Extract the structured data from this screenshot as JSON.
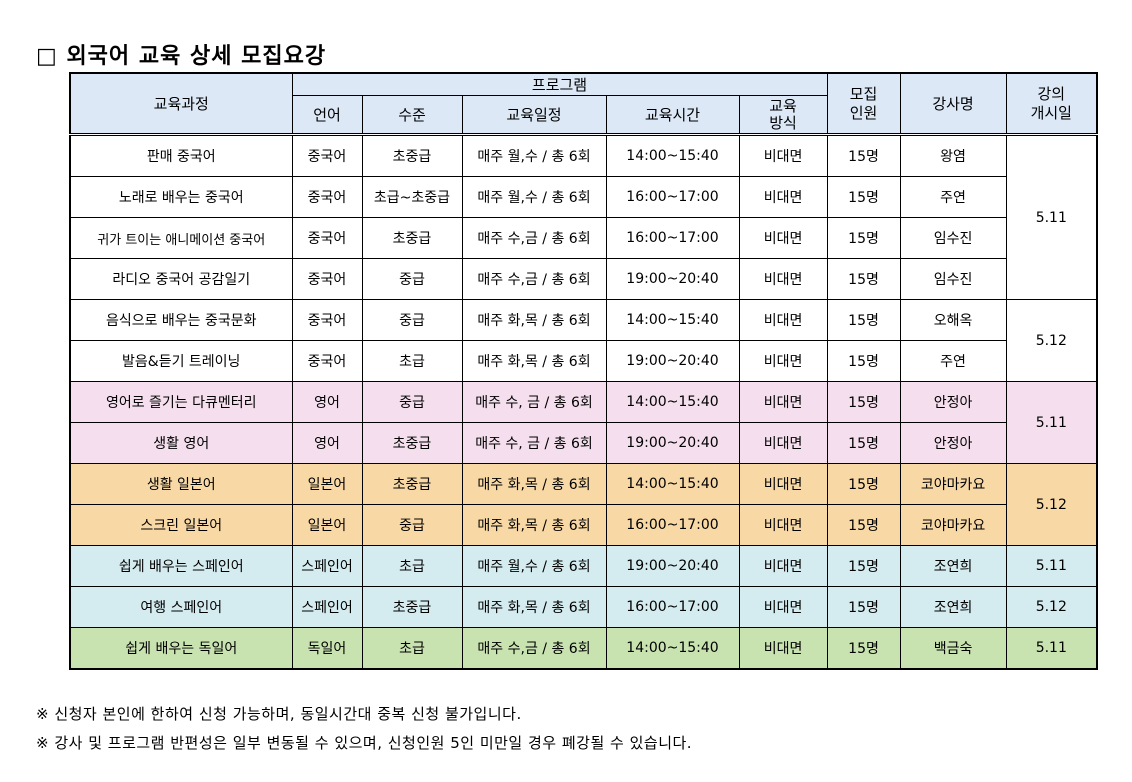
{
  "title": "□ 외국어 교육 상세 모집요강",
  "headers": {
    "course": "교육과정",
    "program": "프로그램",
    "language": "언어",
    "level": "수준",
    "schedule": "교육일정",
    "time": "교육시간",
    "method": "교육\n방식",
    "capacity": "모집\n인원",
    "instructor": "강사명",
    "start_date": "강의\n개시일"
  },
  "rows": [
    {
      "course": "판매 중국어",
      "language": "중국어",
      "level": "초중급",
      "schedule": "매주 월,수 / 총 6회",
      "time": "14:00~15:40",
      "method": "비대면",
      "capacity": "15명",
      "instructor": "왕염"
    },
    {
      "course": "노래로 배우는 중국어",
      "language": "중국어",
      "level": "초급~초중급",
      "schedule": "매주 월,수 / 총 6회",
      "time": "16:00~17:00",
      "method": "비대면",
      "capacity": "15명",
      "instructor": "주연"
    },
    {
      "course": "귀가 트이는 애니메이션 중국어",
      "language": "중국어",
      "level": "초중급",
      "schedule": "매주 수,금 / 총 6회",
      "time": "16:00~17:00",
      "method": "비대면",
      "capacity": "15명",
      "instructor": "임수진"
    },
    {
      "course": "라디오 중국어 공감일기",
      "language": "중국어",
      "level": "중급",
      "schedule": "매주 수,금 / 총 6회",
      "time": "19:00~20:40",
      "method": "비대면",
      "capacity": "15명",
      "instructor": "임수진"
    },
    {
      "course": "음식으로 배우는 중국문화",
      "language": "중국어",
      "level": "중급",
      "schedule": "매주 화,목 / 총 6회",
      "time": "14:00~15:40",
      "method": "비대면",
      "capacity": "15명",
      "instructor": "오해옥"
    },
    {
      "course": "발음&듣기 트레이닝",
      "language": "중국어",
      "level": "초급",
      "schedule": "매주 화,목 / 총 6회",
      "time": "19:00~20:40",
      "method": "비대면",
      "capacity": "15명",
      "instructor": "주연"
    },
    {
      "course": "영어로 즐기는 다큐멘터리",
      "language": "영어",
      "level": "중급",
      "schedule": "매주 수, 금 / 총 6회",
      "time": "14:00~15:40",
      "method": "비대면",
      "capacity": "15명",
      "instructor": "안정아"
    },
    {
      "course": "생활 영어",
      "language": "영어",
      "level": "초중급",
      "schedule": "매주 수, 금 / 총 6회",
      "time": "19:00~20:40",
      "method": "비대면",
      "capacity": "15명",
      "instructor": "안정아"
    },
    {
      "course": "생활 일본어",
      "language": "일본어",
      "level": "초중급",
      "schedule": "매주 화,목 / 총 6회",
      "time": "14:00~15:40",
      "method": "비대면",
      "capacity": "15명",
      "instructor": "코야마카요"
    },
    {
      "course": "스크린 일본어",
      "language": "일본어",
      "level": "중급",
      "schedule": "매주 화,목 / 총 6회",
      "time": "16:00~17:00",
      "method": "비대면",
      "capacity": "15명",
      "instructor": "코야마카요"
    },
    {
      "course": "쉽게 배우는 스페인어",
      "language": "스페인어",
      "level": "초급",
      "schedule": "매주 월,수 / 총 6회",
      "time": "19:00~20:40",
      "method": "비대면",
      "capacity": "15명",
      "instructor": "조연희"
    },
    {
      "course": "여행 스페인어",
      "language": "스페인어",
      "level": "초중급",
      "schedule": "매주 화,목 / 총 6회",
      "time": "16:00~17:00",
      "method": "비대면",
      "capacity": "15명",
      "instructor": "조연희"
    },
    {
      "course": "쉽게 배우는 독일어",
      "language": "독일어",
      "level": "초급",
      "schedule": "매주 수,금 / 총 6회",
      "time": "14:00~15:40",
      "method": "비대면",
      "capacity": "15명",
      "instructor": "백금숙"
    }
  ],
  "start_dates": [
    "5.11",
    "5.12",
    "5.11",
    "5.12",
    "5.11",
    "5.12",
    "5.11"
  ],
  "notes": [
    "※ 신청자 본인에 한하여 신청 가능하며, 동일시간대 중복 신청 불가입니다.",
    "※ 강사 및 프로그램 반편성은 일부 변동될 수 있으며, 신청인원 5인 미만일 경우 폐강될 수 있습니다."
  ]
}
